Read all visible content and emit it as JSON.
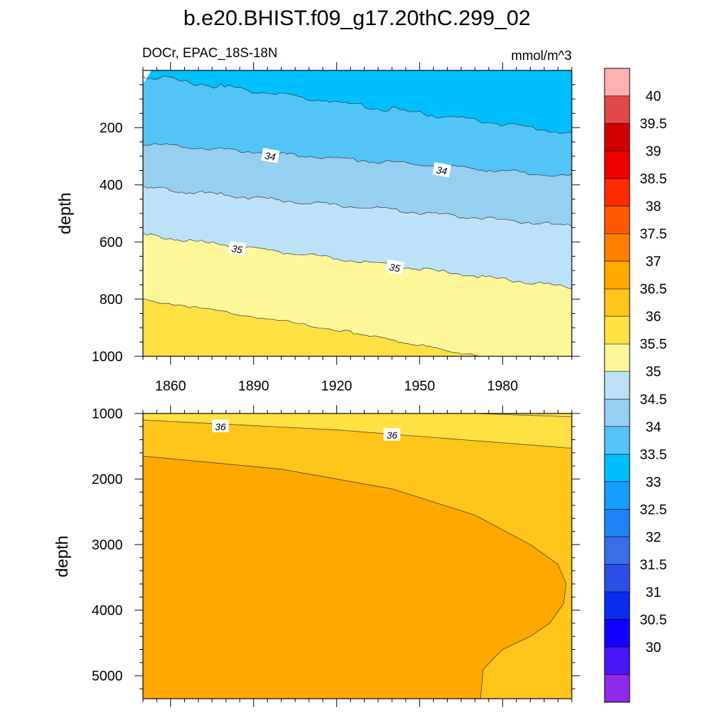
{
  "title": "b.e20.BHIST.f09_g17.20thC.299_02",
  "subtitle_left": "DOCr, EPAC_18S-18N",
  "subtitle_right": "mmol/m^3",
  "chart_data": [
    {
      "type": "contour",
      "panel": "upper",
      "xlabel": "",
      "ylabel": "depth",
      "xlim": [
        1850,
        2005
      ],
      "ylim": [
        1000,
        0
      ],
      "x_ticks": [
        1860,
        1890,
        1920,
        1950,
        1980
      ],
      "x_tick_labels": [
        "1860",
        "1890",
        "1920",
        "1950",
        "1980"
      ],
      "y_ticks": [
        200,
        400,
        600,
        800,
        1000
      ],
      "y_tick_labels": [
        "200",
        "400",
        "600",
        "800",
        "1000"
      ],
      "contours": [
        {
          "level": 33.5,
          "x": [
            1850,
            2005
          ],
          "depth": [
            20,
            220
          ]
        },
        {
          "level": 34.0,
          "x": [
            1850,
            2005
          ],
          "depth": [
            255,
            370
          ]
        },
        {
          "level": 34.5,
          "x": [
            1850,
            2005
          ],
          "depth": [
            410,
            545
          ]
        },
        {
          "level": 35.0,
          "x": [
            1850,
            2005
          ],
          "depth": [
            575,
            760
          ]
        },
        {
          "level": 35.5,
          "x": [
            1850,
            1925,
            1971
          ],
          "depth": [
            800,
            915,
            1000
          ]
        }
      ],
      "contour_labels": [
        {
          "text": "34",
          "x": 1896,
          "depth": 300
        },
        {
          "text": "34",
          "x": 1958,
          "depth": 350
        },
        {
          "text": "35",
          "x": 1884,
          "depth": 625
        },
        {
          "text": "35",
          "x": 1941,
          "depth": 690
        }
      ]
    },
    {
      "type": "contour",
      "panel": "lower",
      "xlabel": "",
      "ylabel": "depth",
      "xlim": [
        1850,
        2005
      ],
      "ylim": [
        5350,
        1000
      ],
      "y_ticks": [
        1000,
        2000,
        3000,
        4000,
        5000
      ],
      "y_tick_labels": [
        "1000",
        "2000",
        "3000",
        "4000",
        "5000"
      ],
      "contours": [
        {
          "level": 35.5,
          "x": [
            1970,
            2005
          ],
          "depth": [
            1000,
            1050
          ]
        },
        {
          "level": 36.0,
          "x": [
            1850,
            1920,
            2005
          ],
          "depth": [
            1100,
            1250,
            1530
          ]
        },
        {
          "level": 36.5,
          "x": [
            1850,
            1900,
            1940,
            1970,
            1990,
            2000,
            2003,
            2002,
            1997,
            1990,
            1980,
            1973,
            1972
          ],
          "depth": [
            1650,
            1850,
            2150,
            2550,
            3000,
            3300,
            3600,
            3900,
            4200,
            4400,
            4600,
            4900,
            5350
          ]
        }
      ],
      "contour_labels": [
        {
          "text": "36",
          "x": 1878,
          "depth": 1200
        },
        {
          "text": "36",
          "x": 1940,
          "depth": 1330
        }
      ]
    }
  ],
  "colorbar": {
    "labels": [
      "40",
      "39.5",
      "39",
      "38.5",
      "38",
      "37.5",
      "37",
      "36.5",
      "36",
      "35.5",
      "35",
      "34.5",
      "34",
      "33.5",
      "33",
      "32.5",
      "32",
      "31.5",
      "31",
      "30.5",
      "30"
    ],
    "colors": [
      "#ffb2b2",
      "#e04848",
      "#d10000",
      "#f00000",
      "#ff2a00",
      "#ff5a00",
      "#ff8000",
      "#ffa800",
      "#fec51a",
      "#ffe144",
      "#fef79a",
      "#bde2f7",
      "#96cff0",
      "#52c4f6",
      "#00bfff",
      "#159eff",
      "#1e82f5",
      "#3a6ee6",
      "#2b4ee6",
      "#0a2cef",
      "#1200ff",
      "#4a16f5",
      "#8e2aea"
    ]
  },
  "fill_colors": {
    "lt33": "#00bfff",
    "c33_5": "#52c4f6",
    "c34": "#96cff0",
    "c34_5": "#bde2f7",
    "c35": "#fef79a",
    "c35_5": "#ffe144",
    "c36": "#fec51a",
    "c36_5": "#ffa800"
  }
}
